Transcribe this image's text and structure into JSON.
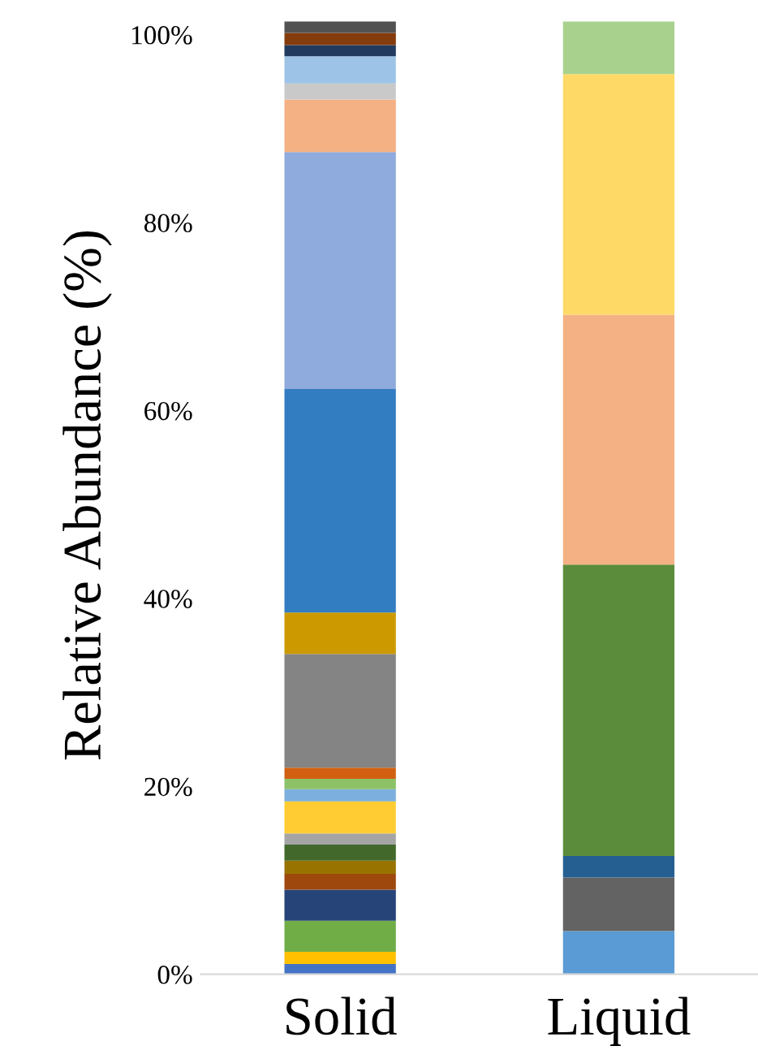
{
  "chart_data": {
    "type": "bar",
    "stacked": true,
    "ylabel": "Relative Abundance (%)",
    "categories": [
      "Solid",
      "Liquid"
    ],
    "ylim": [
      0,
      102
    ],
    "yticks": [
      {
        "value": 0,
        "label": "0%"
      },
      {
        "value": 20,
        "label": "20%"
      },
      {
        "value": 40,
        "label": "40%"
      },
      {
        "value": 60,
        "label": "60%"
      },
      {
        "value": 80,
        "label": "80%"
      },
      {
        "value": 100,
        "label": "100%"
      }
    ],
    "grid": false,
    "legend": false,
    "series": [
      {
        "color": "#4472c4",
        "values": [
          1.1,
          null
        ]
      },
      {
        "color": "#ffc000",
        "values": [
          1.3,
          null
        ]
      },
      {
        "color": "#70ad47",
        "values": [
          3.3,
          null
        ]
      },
      {
        "color": "#264478",
        "values": [
          3.3,
          null
        ]
      },
      {
        "color": "#9e480e",
        "values": [
          1.7,
          null
        ]
      },
      {
        "color": "#997300",
        "values": [
          1.4,
          null
        ]
      },
      {
        "color": "#43682b",
        "values": [
          1.7,
          null
        ]
      },
      {
        "color": "#a5a5a5",
        "values": [
          1.2,
          null
        ]
      },
      {
        "color": "#ffcd33",
        "values": [
          3.4,
          null
        ]
      },
      {
        "color": "#7cafdd",
        "values": [
          1.3,
          null
        ]
      },
      {
        "color": "#8cc168",
        "values": [
          1.1,
          null
        ]
      },
      {
        "color": "#d26012",
        "values": [
          1.2,
          null
        ]
      },
      {
        "color": "#848484",
        "values": [
          12.1,
          null
        ]
      },
      {
        "color": "#cc9a00",
        "values": [
          4.4,
          null
        ]
      },
      {
        "color": "#327dc2",
        "values": [
          23.8,
          null
        ]
      },
      {
        "color": "#8faadc",
        "values": [
          25.2,
          null
        ]
      },
      {
        "color": "#f4b183",
        "values": [
          5.6,
          null
        ]
      },
      {
        "color": "#c9c9c9",
        "values": [
          1.7,
          null
        ]
      },
      {
        "color": "#9dc3e6",
        "values": [
          2.9,
          null
        ]
      },
      {
        "color": "#223a5e",
        "values": [
          1.2,
          null
        ]
      },
      {
        "color": "#843c0c",
        "values": [
          1.3,
          null
        ]
      },
      {
        "color": "#525252",
        "values": [
          1.2,
          null
        ]
      },
      {
        "color": "#5b9bd5",
        "values": [
          null,
          4.6
        ]
      },
      {
        "color": "#636363",
        "values": [
          null,
          5.7
        ]
      },
      {
        "color": "#255e91",
        "values": [
          null,
          2.3
        ]
      },
      {
        "color": "#5b8c3c",
        "values": [
          null,
          31.0
        ]
      },
      {
        "color": "#f4b183",
        "values": [
          null,
          26.6
        ]
      },
      {
        "color": "#ffd966",
        "values": [
          null,
          25.6
        ]
      },
      {
        "color": "#a9d18e",
        "values": [
          null,
          5.6
        ]
      }
    ]
  }
}
